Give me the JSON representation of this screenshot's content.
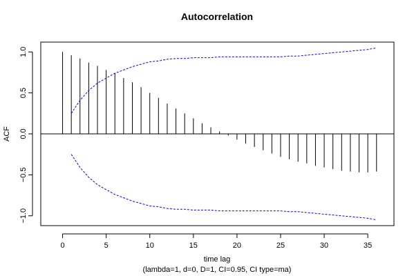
{
  "chart_data": {
    "type": "bar",
    "title": "Autocorrelation",
    "xlabel": "time lag",
    "subtitle": "(lambda=1, d=0, D=1, CI=0.95, CI type=ma)",
    "ylabel": "ACF",
    "xlim": [
      -2.5,
      38
    ],
    "ylim": [
      -1.12,
      1.12
    ],
    "xticks": [
      0,
      5,
      10,
      15,
      20,
      25,
      30,
      35
    ],
    "yticks": [
      -1.0,
      -0.5,
      0.0,
      0.5,
      1.0
    ],
    "ytick_labels": [
      "−1.0",
      "−0.5",
      "0.0",
      "0.5",
      "1.0"
    ],
    "grid": false,
    "lags": [
      0,
      1,
      2,
      3,
      4,
      5,
      6,
      7,
      8,
      9,
      10,
      11,
      12,
      13,
      14,
      15,
      16,
      17,
      18,
      19,
      20,
      21,
      22,
      23,
      24,
      25,
      26,
      27,
      28,
      29,
      30,
      31,
      32,
      33,
      34,
      35,
      36
    ],
    "acf": [
      1.0,
      0.96,
      0.92,
      0.87,
      0.83,
      0.78,
      0.74,
      0.68,
      0.63,
      0.57,
      0.5,
      0.44,
      0.37,
      0.31,
      0.25,
      0.19,
      0.13,
      0.08,
      0.03,
      -0.02,
      -0.07,
      -0.12,
      -0.16,
      -0.2,
      -0.24,
      -0.28,
      -0.31,
      -0.34,
      -0.36,
      -0.39,
      -0.41,
      -0.43,
      -0.45,
      -0.46,
      -0.47,
      -0.47,
      -0.46
    ],
    "ci_lags": [
      1,
      2,
      3,
      4,
      5,
      6,
      7,
      8,
      9,
      10,
      11,
      12,
      13,
      14,
      15,
      16,
      17,
      18,
      19,
      20,
      21,
      22,
      23,
      24,
      25,
      26,
      27,
      28,
      29,
      30,
      31,
      32,
      33,
      34,
      35,
      36
    ],
    "ci_upper": [
      0.25,
      0.41,
      0.53,
      0.62,
      0.68,
      0.74,
      0.78,
      0.82,
      0.85,
      0.88,
      0.89,
      0.91,
      0.92,
      0.92,
      0.93,
      0.93,
      0.93,
      0.94,
      0.94,
      0.94,
      0.94,
      0.94,
      0.94,
      0.94,
      0.94,
      0.95,
      0.95,
      0.96,
      0.97,
      0.98,
      0.99,
      1.0,
      1.01,
      1.02,
      1.03,
      1.05
    ],
    "ci_lower": [
      -0.25,
      -0.41,
      -0.53,
      -0.62,
      -0.68,
      -0.74,
      -0.78,
      -0.82,
      -0.85,
      -0.88,
      -0.89,
      -0.91,
      -0.92,
      -0.92,
      -0.93,
      -0.93,
      -0.93,
      -0.94,
      -0.94,
      -0.94,
      -0.94,
      -0.94,
      -0.94,
      -0.94,
      -0.94,
      -0.95,
      -0.95,
      -0.96,
      -0.97,
      -0.98,
      -0.99,
      -1.0,
      -1.01,
      -1.02,
      -1.03,
      -1.05
    ],
    "colors": {
      "bars": "#000000",
      "ci": "#0000ff",
      "zero_line": "#000000"
    }
  }
}
